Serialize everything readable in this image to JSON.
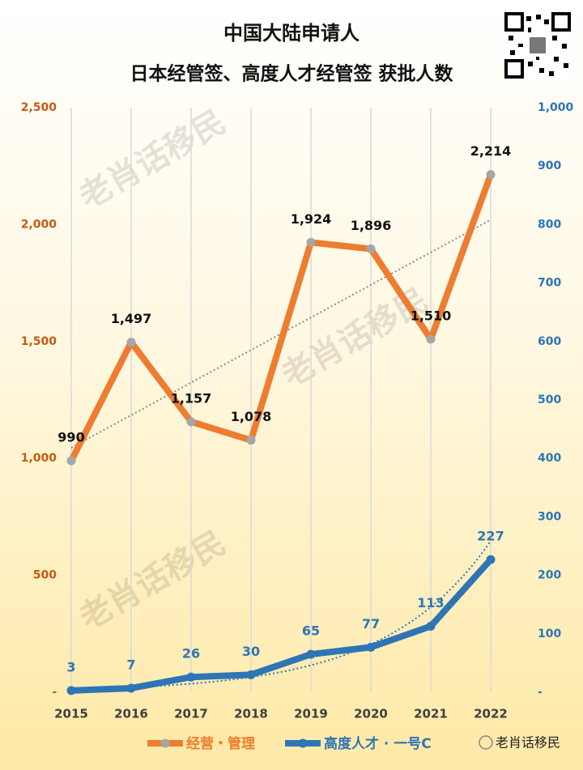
{
  "chart_data": {
    "type": "line",
    "title": "中国大陆申请人",
    "subtitle": "日本经管签、高度人才经管签 获批人数",
    "watermark": "老肖话移民",
    "categories": [
      "2015",
      "2016",
      "2017",
      "2018",
      "2019",
      "2020",
      "2021",
      "2022"
    ],
    "series": [
      {
        "name": "经营・管理",
        "color": "#ed7d31",
        "marker_color": "#a6a6a6",
        "axis": "y",
        "values": [
          990,
          1497,
          1157,
          1078,
          1924,
          1896,
          1510,
          2214
        ],
        "value_labels": [
          "990",
          "1,497",
          "1,157",
          "1,078",
          "1,924",
          "1,896",
          "1,510",
          "2,214"
        ]
      },
      {
        "name": "高度人才 · 一号C",
        "color": "#2e75b6",
        "marker_color": "#2e75b6",
        "axis": "y2",
        "values": [
          3,
          7,
          26,
          30,
          65,
          77,
          113,
          227
        ]
      }
    ],
    "ylim": [
      0,
      2500
    ],
    "yticks": [
      {
        "value": 0,
        "label": "-"
      },
      500,
      {
        "value": 1000,
        "label": "1,000"
      },
      {
        "value": 1500,
        "label": "1,500"
      },
      {
        "value": 2000,
        "label": "2,000"
      },
      {
        "value": 2500,
        "label": "2,500"
      }
    ],
    "y2lim": [
      0,
      1000
    ],
    "y2ticks": [
      {
        "value": 0,
        "label": "-"
      },
      100,
      200,
      300,
      400,
      500,
      600,
      700,
      800,
      900,
      {
        "value": 1000,
        "label": "1,000"
      }
    ],
    "grid": "x",
    "legend": "bottom"
  }
}
